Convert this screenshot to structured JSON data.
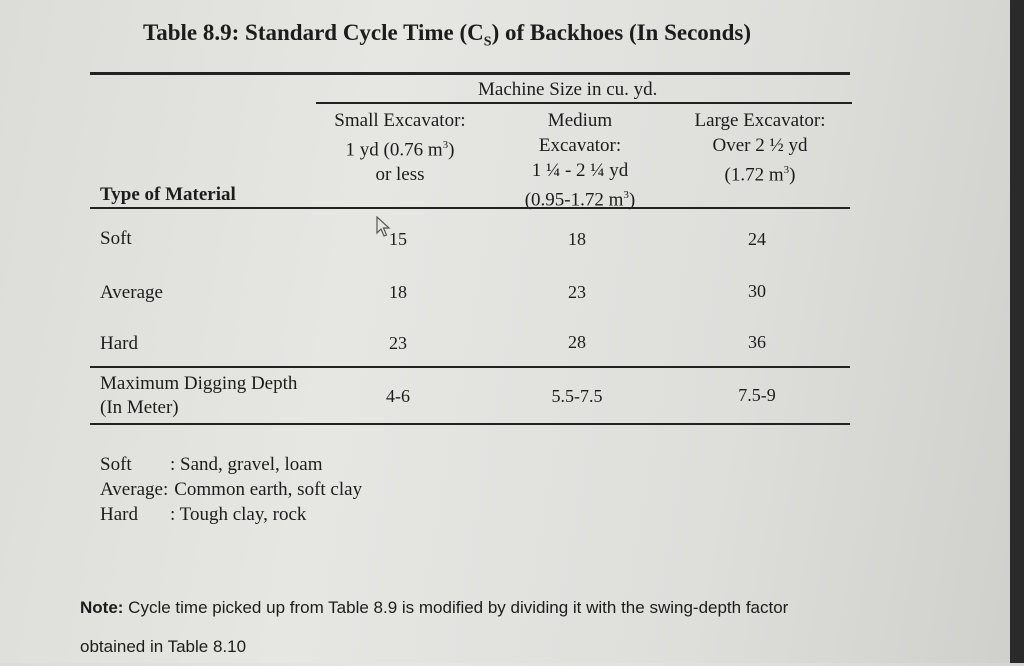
{
  "title": {
    "prefix": "Table 8.9: Standard Cycle Time (C",
    "sub": "S",
    "suffix": ") of Backhoes (In Seconds)"
  },
  "header": {
    "group": "Machine Size in cu. yd.",
    "type_of_material": "Type of Material",
    "small": {
      "line1": "Small Excavator:",
      "line2": "1 yd (0.76 m",
      "sup": "3",
      "line2_end": ")",
      "line3": "or less"
    },
    "medium": {
      "line1": "Medium",
      "line2": "Excavator:",
      "line3": "1 ¼ - 2 ¼ yd",
      "line4": "(0.95-1.72 m",
      "sup": "3",
      "line4_end": ")"
    },
    "large": {
      "line1": "Large Excavator:",
      "line2": "Over 2 ½ yd",
      "line3": "(1.72 m",
      "sup": "3",
      "line3_end": ")"
    }
  },
  "rows": [
    {
      "label": "Soft",
      "small": "15",
      "medium": "18",
      "large": "24"
    },
    {
      "label": "Average",
      "small": "18",
      "medium": "23",
      "large": "30"
    },
    {
      "label": "Hard",
      "small": "23",
      "medium": "28",
      "large": "36"
    }
  ],
  "depth": {
    "label": "Maximum Digging Depth (In Meter)",
    "small": "4-6",
    "medium": "5.5-7.5",
    "large": "7.5-9"
  },
  "legend": [
    {
      "key": "Soft",
      "value": ": Sand, gravel, loam"
    },
    {
      "key": "Average:",
      "value": "Common earth, soft clay"
    },
    {
      "key": "Hard",
      "value": ": Tough clay, rock"
    }
  ],
  "note": {
    "bold": "Note:",
    "text": " Cycle time picked up from Table 8.9 is modified by dividing it with the swing-depth factor obtained in Table 8.10"
  }
}
